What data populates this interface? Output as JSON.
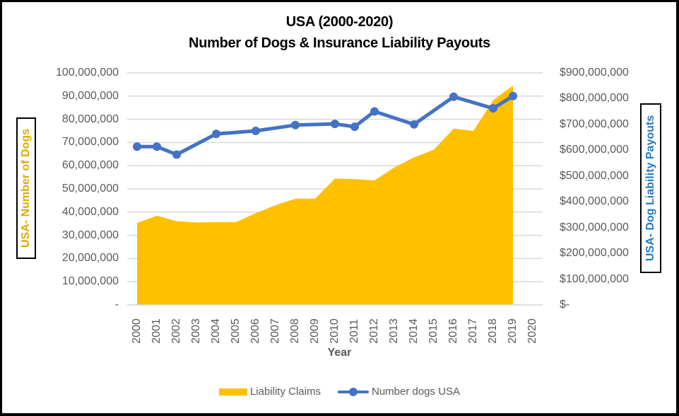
{
  "chart_data": {
    "type": "area+line",
    "title": "USA (2000-2020)",
    "subtitle": "Number of Dogs & Insurance Liability Payouts",
    "xlabel": "Year",
    "ylabel_left": "USA- Number of Dogs",
    "ylabel_right": "USA- Dog Liability Payouts",
    "categories": [
      "2000",
      "2001",
      "2002",
      "2003",
      "2004",
      "2005",
      "2006",
      "2007",
      "2008",
      "2009",
      "2010",
      "2011",
      "2012",
      "2013",
      "2014",
      "2015",
      "2016",
      "2017",
      "2018",
      "2019",
      "2020"
    ],
    "y_left": {
      "min": 0,
      "max": 100000000,
      "ticks": [
        "-",
        "10,000,000",
        "20,000,000",
        "30,000,000",
        "40,000,000",
        "50,000,000",
        "60,000,000",
        "70,000,000",
        "80,000,000",
        "90,000,000",
        "100,000,000"
      ]
    },
    "y_right": {
      "min": 0,
      "max": 900000000,
      "ticks": [
        "$-",
        "$100,000,000",
        "$200,000,000",
        "$300,000,000",
        "$400,000,000",
        "$500,000,000",
        "$600,000,000",
        "$700,000,000",
        "$800,000,000",
        "$900,000,000"
      ]
    },
    "grid": true,
    "legend_position": "bottom",
    "series": [
      {
        "name": "Liability Claims",
        "type": "area",
        "axis": "right",
        "color": "#FFC000",
        "values": [
          318000000,
          346000000,
          325000000,
          320000000,
          321000000,
          321000000,
          356000000,
          387000000,
          412000000,
          412000000,
          490000000,
          488000000,
          483000000,
          533000000,
          572000000,
          602000000,
          684000000,
          675000000,
          794000000,
          851000000,
          null
        ]
      },
      {
        "name": "Number dogs USA",
        "type": "line",
        "axis": "left",
        "color": "#4472C4",
        "values": [
          68200000,
          68200000,
          64800000,
          null,
          73700000,
          null,
          75000000,
          null,
          77500000,
          null,
          78000000,
          76800000,
          83400000,
          null,
          77800000,
          null,
          89700000,
          null,
          84700000,
          90000000,
          null
        ]
      }
    ]
  }
}
